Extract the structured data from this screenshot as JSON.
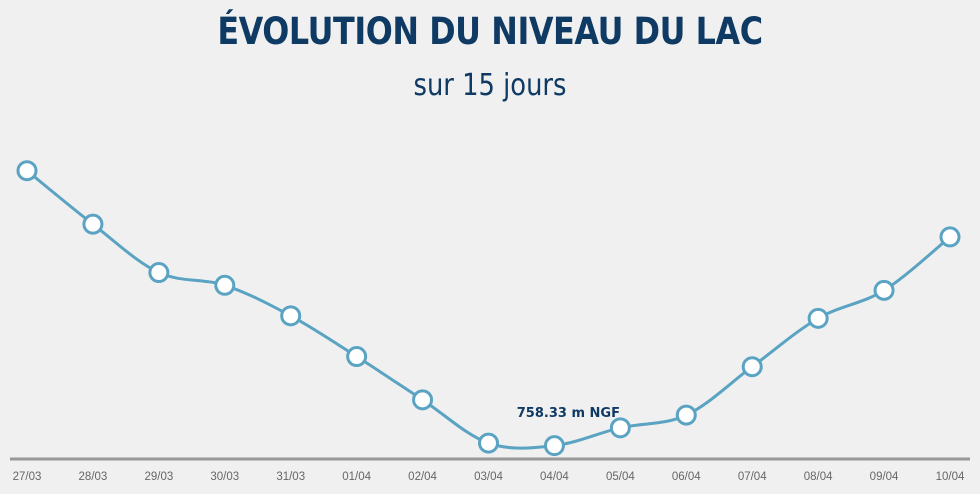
{
  "title": "ÉVOLUTION DU NIVEAU DU LAC",
  "subtitle": "sur 15 jours",
  "colors": {
    "title": "#0f3a63",
    "line": "#5aa3c2",
    "axis": "#999999",
    "marker_fill": "#ffffff",
    "background": "#f0f0f0"
  },
  "chart_data": {
    "type": "line",
    "title": "ÉVOLUTION DU NIVEAU DU LAC",
    "subtitle": "sur 15 jours",
    "categories": [
      "27/03",
      "28/03",
      "29/03",
      "30/03",
      "31/03",
      "01/04",
      "02/04",
      "03/04",
      "04/04",
      "05/04",
      "06/04",
      "07/04",
      "08/04",
      "09/04",
      "10/04"
    ],
    "values": [
      759.34,
      759.13,
      758.94,
      758.89,
      758.77,
      758.61,
      758.44,
      758.27,
      758.26,
      758.33,
      758.38,
      758.57,
      758.76,
      758.87,
      759.08
    ],
    "unit": "m NGF",
    "annotations": [
      {
        "category": "05/04",
        "text": "758.33 m NGF"
      }
    ],
    "ylim": [
      758.18,
      759.5
    ],
    "grid": false,
    "y_axis_visible": false,
    "marker": "circle",
    "smooth": true
  }
}
